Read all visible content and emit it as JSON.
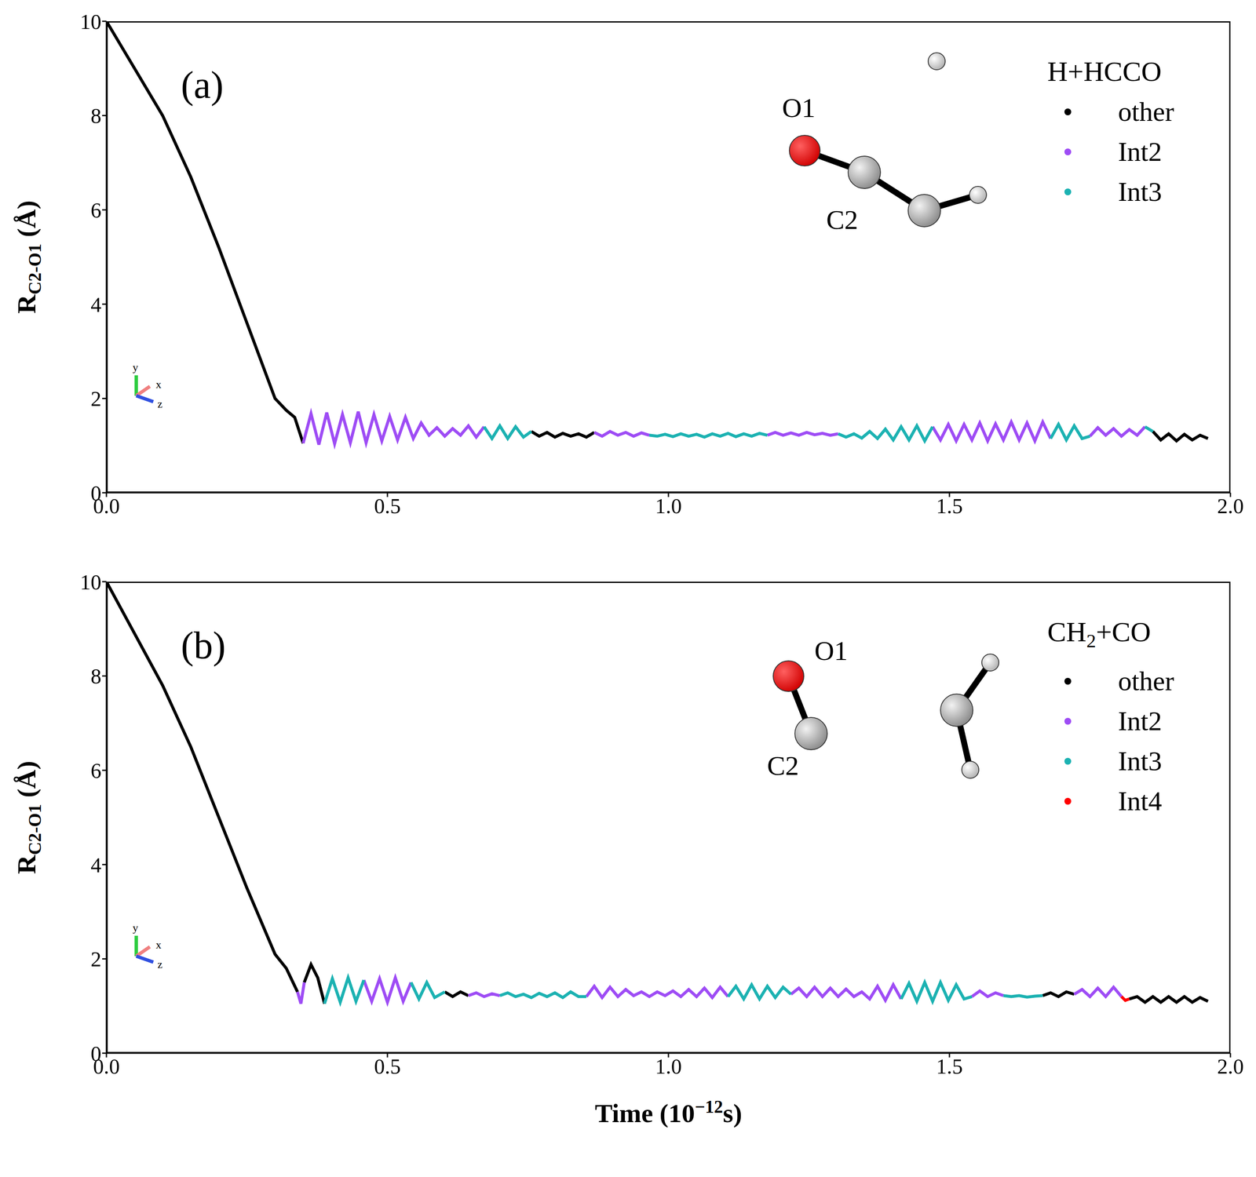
{
  "chart_data": [
    {
      "type": "line",
      "panel": "(a)",
      "ylabel": [
        "R",
        "C2-O1",
        " (Å)"
      ],
      "xlim": [
        0,
        2
      ],
      "xticks": [
        {
          "value": 0,
          "label": "0.0"
        },
        {
          "value": 0.5,
          "label": "0.5"
        },
        {
          "value": 1,
          "label": "1.0"
        },
        {
          "value": 1.5,
          "label": "1.5"
        },
        {
          "value": 2,
          "label": "2.0"
        }
      ],
      "ylim": [
        0,
        10
      ],
      "yticks": [
        0,
        2,
        4,
        6,
        8,
        10
      ],
      "legend": "top right",
      "legend_title": [
        "H+HCCO"
      ],
      "annotations": [
        "O1",
        "C2"
      ],
      "axis_labels": [
        "y",
        "x",
        "z"
      ],
      "series": [
        {
          "name": "other",
          "color": "#000000",
          "x": [
            0,
            0.05,
            0.1,
            0.15,
            0.2,
            0.25,
            0.3,
            0.32,
            0.335,
            0.35,
            0.55,
            0.756,
            0.77,
            0.784,
            0.798,
            0.812,
            0.826,
            0.84,
            0.854,
            0.868,
            1.2,
            1.862,
            1.876,
            1.89,
            1.904,
            1.918,
            1.932,
            1.946,
            1.96
          ],
          "values": [
            10,
            9,
            8,
            6.7,
            5.2,
            3.6,
            2,
            1.75,
            1.6,
            1.05,
            null,
            1.3,
            1.2,
            1.28,
            1.18,
            1.26,
            1.2,
            1.25,
            1.18,
            1.28,
            null,
            1.3,
            1.12,
            1.25,
            1.1,
            1.24,
            1.12,
            1.22,
            1.15
          ]
        },
        {
          "name": "Int2",
          "color": "#9e4cf5",
          "x": [
            0.35,
            0.364,
            0.378,
            0.392,
            0.406,
            0.42,
            0.434,
            0.448,
            0.462,
            0.476,
            0.49,
            0.504,
            0.518,
            0.532,
            0.546,
            0.56,
            0.574,
            0.588,
            0.602,
            0.616,
            0.63,
            0.644,
            0.658,
            0.672,
            0.8,
            0.868,
            0.882,
            0.896,
            0.91,
            0.924,
            0.938,
            0.952,
            0.966,
            1.0,
            1.176,
            1.19,
            1.204,
            1.218,
            1.232,
            1.246,
            1.26,
            1.274,
            1.288,
            1.302,
            1.4,
            1.47,
            1.484,
            1.498,
            1.512,
            1.526,
            1.54,
            1.554,
            1.568,
            1.582,
            1.596,
            1.61,
            1.624,
            1.638,
            1.652,
            1.666,
            1.68,
            1.715,
            1.75,
            1.764,
            1.778,
            1.792,
            1.806,
            1.82,
            1.834,
            1.848
          ],
          "values": [
            1.05,
            1.68,
            1.02,
            1.7,
            1.04,
            1.66,
            1.06,
            1.72,
            1.06,
            1.66,
            1.1,
            1.62,
            1.12,
            1.6,
            1.15,
            1.48,
            1.22,
            1.38,
            1.2,
            1.36,
            1.22,
            1.42,
            1.18,
            1.4,
            null,
            1.28,
            1.2,
            1.3,
            1.22,
            1.28,
            1.2,
            1.27,
            1.22,
            null,
            1.22,
            1.28,
            1.22,
            1.27,
            1.22,
            1.28,
            1.23,
            1.26,
            1.22,
            1.25,
            null,
            1.4,
            1.12,
            1.45,
            1.1,
            1.45,
            1.12,
            1.48,
            1.1,
            1.46,
            1.12,
            1.5,
            1.12,
            1.48,
            1.1,
            1.5,
            1.15,
            null,
            1.2,
            1.38,
            1.22,
            1.36,
            1.2,
            1.34,
            1.22,
            1.4
          ]
        },
        {
          "name": "Int3",
          "color": "#1cb2b2",
          "x": [
            0.672,
            0.686,
            0.7,
            0.714,
            0.728,
            0.742,
            0.756,
            0.86,
            0.966,
            0.98,
            0.994,
            1.008,
            1.022,
            1.036,
            1.05,
            1.064,
            1.078,
            1.092,
            1.106,
            1.12,
            1.134,
            1.148,
            1.162,
            1.176,
            1.24,
            1.302,
            1.316,
            1.33,
            1.344,
            1.358,
            1.372,
            1.386,
            1.4,
            1.414,
            1.428,
            1.442,
            1.456,
            1.47,
            1.575,
            1.68,
            1.694,
            1.708,
            1.722,
            1.736,
            1.75,
            1.8,
            1.848,
            1.862
          ],
          "values": [
            1.4,
            1.15,
            1.42,
            1.15,
            1.4,
            1.18,
            1.3,
            null,
            1.22,
            1.2,
            1.24,
            1.19,
            1.25,
            1.2,
            1.24,
            1.18,
            1.25,
            1.2,
            1.26,
            1.19,
            1.25,
            1.2,
            1.26,
            1.22,
            null,
            1.25,
            1.18,
            1.25,
            1.16,
            1.3,
            1.15,
            1.35,
            1.12,
            1.4,
            1.12,
            1.42,
            1.1,
            1.4,
            null,
            1.15,
            1.45,
            1.12,
            1.42,
            1.15,
            1.2,
            null,
            1.4,
            1.3
          ]
        }
      ]
    },
    {
      "type": "line",
      "panel": "(b)",
      "ylabel": [
        "R",
        "C2-O1",
        " (Å)"
      ],
      "xlabel": [
        "Time (10",
        "−12",
        "s)"
      ],
      "xlim": [
        0,
        2
      ],
      "xticks": [
        {
          "value": 0,
          "label": "0.0"
        },
        {
          "value": 0.5,
          "label": "0.5"
        },
        {
          "value": 1,
          "label": "1.0"
        },
        {
          "value": 1.5,
          "label": "1.5"
        },
        {
          "value": 2,
          "label": "2.0"
        }
      ],
      "ylim": [
        0,
        10
      ],
      "yticks": [
        0,
        2,
        4,
        6,
        8,
        10
      ],
      "legend": "top right",
      "legend_title": [
        "CH",
        "2",
        "+CO"
      ],
      "annotations": [
        "O1",
        "C2"
      ],
      "axis_labels": [
        "y",
        "x",
        "z"
      ],
      "series": [
        {
          "name": "other",
          "color": "#000000",
          "x": [
            0,
            0.05,
            0.1,
            0.15,
            0.2,
            0.25,
            0.3,
            0.32,
            0.34,
            0.346,
            0.352,
            0.364,
            0.376,
            0.388,
            0.5,
            0.602,
            0.616,
            0.63,
            0.644,
            1.0,
            1.666,
            1.68,
            1.694,
            1.708,
            1.722,
            1.76,
            1.82,
            1.834,
            1.848,
            1.862,
            1.876,
            1.89,
            1.904,
            1.918,
            1.932,
            1.946,
            1.96
          ],
          "values": [
            10,
            8.9,
            7.8,
            6.5,
            5,
            3.5,
            2.1,
            1.8,
            1.3,
            null,
            1.5,
            1.88,
            1.6,
            1.05,
            null,
            1.3,
            1.2,
            1.3,
            1.22,
            null,
            1.22,
            1.28,
            1.2,
            1.3,
            1.25,
            null,
            1.15,
            1.2,
            1.08,
            1.2,
            1.08,
            1.2,
            1.08,
            1.2,
            1.08,
            1.18,
            1.1
          ]
        },
        {
          "name": "Int2",
          "color": "#9e4cf5",
          "x": [
            0.34,
            0.346,
            0.352,
            0.42,
            0.458,
            0.472,
            0.486,
            0.5,
            0.514,
            0.528,
            0.542,
            0.6,
            0.644,
            0.658,
            0.672,
            0.686,
            0.7,
            0.8,
            0.854,
            0.868,
            0.882,
            0.896,
            0.91,
            0.924,
            0.938,
            0.952,
            0.966,
            0.98,
            0.994,
            1.008,
            1.022,
            1.036,
            1.05,
            1.064,
            1.078,
            1.092,
            1.106,
            1.15,
            1.218,
            1.232,
            1.246,
            1.26,
            1.274,
            1.288,
            1.302,
            1.316,
            1.33,
            1.344,
            1.358,
            1.372,
            1.386,
            1.4,
            1.414,
            1.48,
            1.54,
            1.554,
            1.568,
            1.582,
            1.596,
            1.65,
            1.722,
            1.736,
            1.75,
            1.764,
            1.778,
            1.792,
            1.806
          ],
          "values": [
            1.3,
            1.05,
            1.5,
            null,
            1.55,
            1.1,
            1.58,
            1.08,
            1.6,
            1.1,
            1.5,
            null,
            1.22,
            1.28,
            1.2,
            1.26,
            1.22,
            null,
            1.2,
            1.42,
            1.18,
            1.4,
            1.2,
            1.35,
            1.22,
            1.3,
            1.2,
            1.3,
            1.22,
            1.32,
            1.2,
            1.35,
            1.2,
            1.38,
            1.18,
            1.4,
            1.2,
            null,
            1.25,
            1.38,
            1.2,
            1.4,
            1.2,
            1.38,
            1.2,
            1.36,
            1.2,
            1.3,
            1.15,
            1.42,
            1.12,
            1.45,
            1.15,
            null,
            1.2,
            1.32,
            1.2,
            1.28,
            1.22,
            null,
            1.25,
            1.35,
            1.2,
            1.38,
            1.2,
            1.4,
            1.2
          ]
        },
        {
          "name": "Int3",
          "color": "#1cb2b2",
          "x": [
            0.388,
            0.402,
            0.416,
            0.43,
            0.444,
            0.458,
            0.5,
            0.542,
            0.556,
            0.57,
            0.584,
            0.602,
            0.65,
            0.7,
            0.714,
            0.728,
            0.742,
            0.756,
            0.77,
            0.784,
            0.798,
            0.812,
            0.826,
            0.84,
            0.854,
            0.98,
            1.106,
            1.12,
            1.134,
            1.148,
            1.162,
            1.176,
            1.19,
            1.204,
            1.218,
            1.3,
            1.414,
            1.428,
            1.442,
            1.456,
            1.47,
            1.484,
            1.498,
            1.512,
            1.526,
            1.54,
            1.57,
            1.596,
            1.61,
            1.624,
            1.638,
            1.652,
            1.666
          ],
          "values": [
            1.05,
            1.58,
            1.08,
            1.6,
            1.1,
            1.55,
            null,
            1.5,
            1.15,
            1.5,
            1.18,
            1.3,
            null,
            1.22,
            1.28,
            1.2,
            1.25,
            1.18,
            1.27,
            1.2,
            1.28,
            1.18,
            1.3,
            1.2,
            1.2,
            null,
            1.2,
            1.42,
            1.15,
            1.45,
            1.15,
            1.42,
            1.18,
            1.4,
            1.25,
            null,
            1.15,
            1.48,
            1.1,
            1.5,
            1.1,
            1.5,
            1.12,
            1.45,
            1.15,
            1.2,
            null,
            1.22,
            1.2,
            1.22,
            1.19,
            1.21,
            1.22
          ]
        },
        {
          "name": "Int4",
          "color": "#ff0000",
          "x": [
            1.806,
            1.813,
            1.82
          ],
          "values": [
            1.2,
            1.12,
            1.15
          ]
        }
      ]
    }
  ]
}
